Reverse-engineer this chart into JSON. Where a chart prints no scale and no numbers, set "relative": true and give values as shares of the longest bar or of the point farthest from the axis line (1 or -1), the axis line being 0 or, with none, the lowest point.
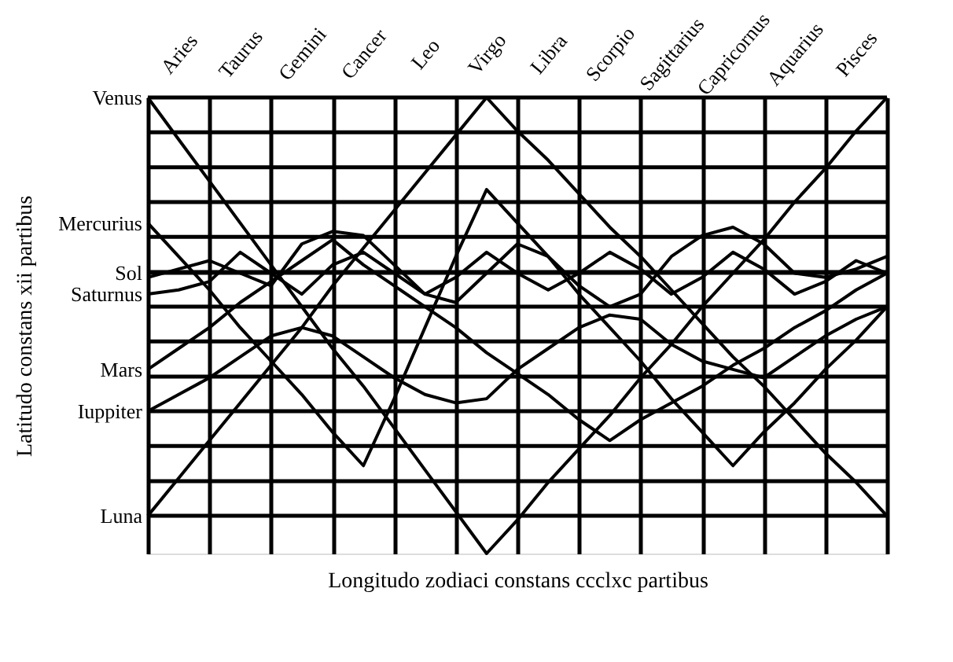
{
  "chart_data": {
    "type": "line",
    "relative": true,
    "xlabel": "Longitudo zodiaci constans ccclxc partibus",
    "ylabel": "Latitudo constans xii partibus",
    "grid": "x",
    "marker": "none",
    "line_style": "solid",
    "categories": [
      null,
      "Aries",
      null,
      "Taurus",
      null,
      "Gemini",
      null,
      "Cancer",
      null,
      "Leo",
      null,
      "Virgo",
      null,
      "Libra",
      null,
      "Scorpio",
      null,
      "Sagittarius",
      null,
      "Capricornus",
      null,
      "Aquarius",
      null,
      "Pisces",
      null
    ],
    "ref_lines": [
      {
        "axis": "y",
        "value": 0,
        "color": "#000000"
      },
      {
        "axis": "y",
        "value": 0.083,
        "color": "#000000"
      },
      {
        "axis": "y",
        "value": 0.167,
        "color": "#000000"
      },
      {
        "axis": "y",
        "value": 0.25,
        "color": "#000000"
      },
      {
        "axis": "y",
        "value": 0.333,
        "color": "#000000"
      },
      {
        "axis": "y",
        "value": 0.417,
        "color": "#000000"
      },
      {
        "axis": "y",
        "value": 0.5,
        "color": "#000000"
      },
      {
        "axis": "y",
        "value": 0.583,
        "color": "#000000"
      },
      {
        "axis": "y",
        "value": 0.667,
        "color": "#000000"
      },
      {
        "axis": "y",
        "value": 0.75,
        "color": "#000000"
      },
      {
        "axis": "y",
        "value": 0.833,
        "color": "#000000"
      },
      {
        "axis": "y",
        "value": 0.917,
        "color": "#000000"
      },
      {
        "axis": "y",
        "value": 1,
        "color": "#000000"
      }
    ],
    "series": [
      {
        "name": "Sol",
        "color": "#000000",
        "values": [
          0.58,
          0.58,
          0.58,
          0.58,
          0.58,
          0.58,
          0.58,
          0.58,
          0.58,
          0.58,
          0.58,
          0.58,
          0.58,
          0.58,
          0.58,
          0.58,
          0.58,
          0.58,
          0.58,
          0.58,
          0.58,
          0.58,
          0.58,
          0.58,
          0.58
        ]
      },
      {
        "name": "Venus",
        "color": "#000000",
        "values": [
          1,
          0.9,
          0.8,
          0.7,
          0.6,
          0.5,
          0.4,
          0.31,
          0.21,
          0.11,
          0.01,
          -0.09,
          -0.01,
          0.08,
          0.16,
          0.24,
          0.33,
          0.41,
          0.5,
          0.58,
          0.66,
          0.75,
          0.83,
          0.92,
          1
        ]
      },
      {
        "name": "Luna",
        "color": "#000000",
        "values": [
          0,
          0.09,
          0.18,
          0.27,
          0.36,
          0.45,
          0.55,
          0.64,
          0.73,
          0.82,
          0.91,
          1,
          0.92,
          0.85,
          0.77,
          0.69,
          0.62,
          0.54,
          0.46,
          0.38,
          0.31,
          0.23,
          0.15,
          0.08,
          0
        ]
      },
      {
        "name": "Mercurius",
        "color": "#000000",
        "values": [
          0.7,
          0.62,
          0.54,
          0.45,
          0.37,
          0.29,
          0.2,
          0.12,
          0.28,
          0.45,
          0.62,
          0.78,
          0.7,
          0.62,
          0.53,
          0.45,
          0.37,
          0.28,
          0.2,
          0.12,
          0.2,
          0.27,
          0.35,
          0.42,
          0.5
        ]
      },
      {
        "name": "Mars",
        "color": "#000000",
        "values": [
          0.35,
          0.4,
          0.45,
          0.51,
          0.56,
          0.61,
          0.66,
          0.6,
          0.55,
          0.5,
          0.45,
          0.39,
          0.34,
          0.29,
          0.23,
          0.18,
          0.23,
          0.27,
          0.31,
          0.36,
          0.4,
          0.45,
          0.49,
          0.54,
          0.58
        ]
      },
      {
        "name": "Saturnus",
        "color": "#000000",
        "values": [
          0.53,
          0.54,
          0.56,
          0.63,
          0.58,
          0.53,
          0.6,
          0.63,
          0.58,
          0.53,
          0.57,
          0.63,
          0.58,
          0.54,
          0.58,
          0.63,
          0.59,
          0.53,
          0.57,
          0.63,
          0.59,
          0.53,
          0.56,
          0.61,
          0.58
        ]
      },
      {
        "color": "#000000",
        "values": [
          0.57,
          0.59,
          0.61,
          0.58,
          0.55,
          0.65,
          0.68,
          0.67,
          0.6,
          0.53,
          0.51,
          0.58,
          0.65,
          0.62,
          0.55,
          0.5,
          0.53,
          0.62,
          0.67,
          0.69,
          0.65,
          0.58,
          0.57,
          0.59,
          0.62
        ]
      },
      {
        "name": "Iuppiter",
        "color": "#000000",
        "values": [
          0.25,
          0.29,
          0.33,
          0.38,
          0.43,
          0.45,
          0.43,
          0.38,
          0.33,
          0.29,
          0.27,
          0.28,
          0.35,
          0.4,
          0.45,
          0.48,
          0.47,
          0.41,
          0.37,
          0.35,
          0.33,
          0.38,
          0.43,
          0.47,
          0.5
        ]
      }
    ]
  }
}
